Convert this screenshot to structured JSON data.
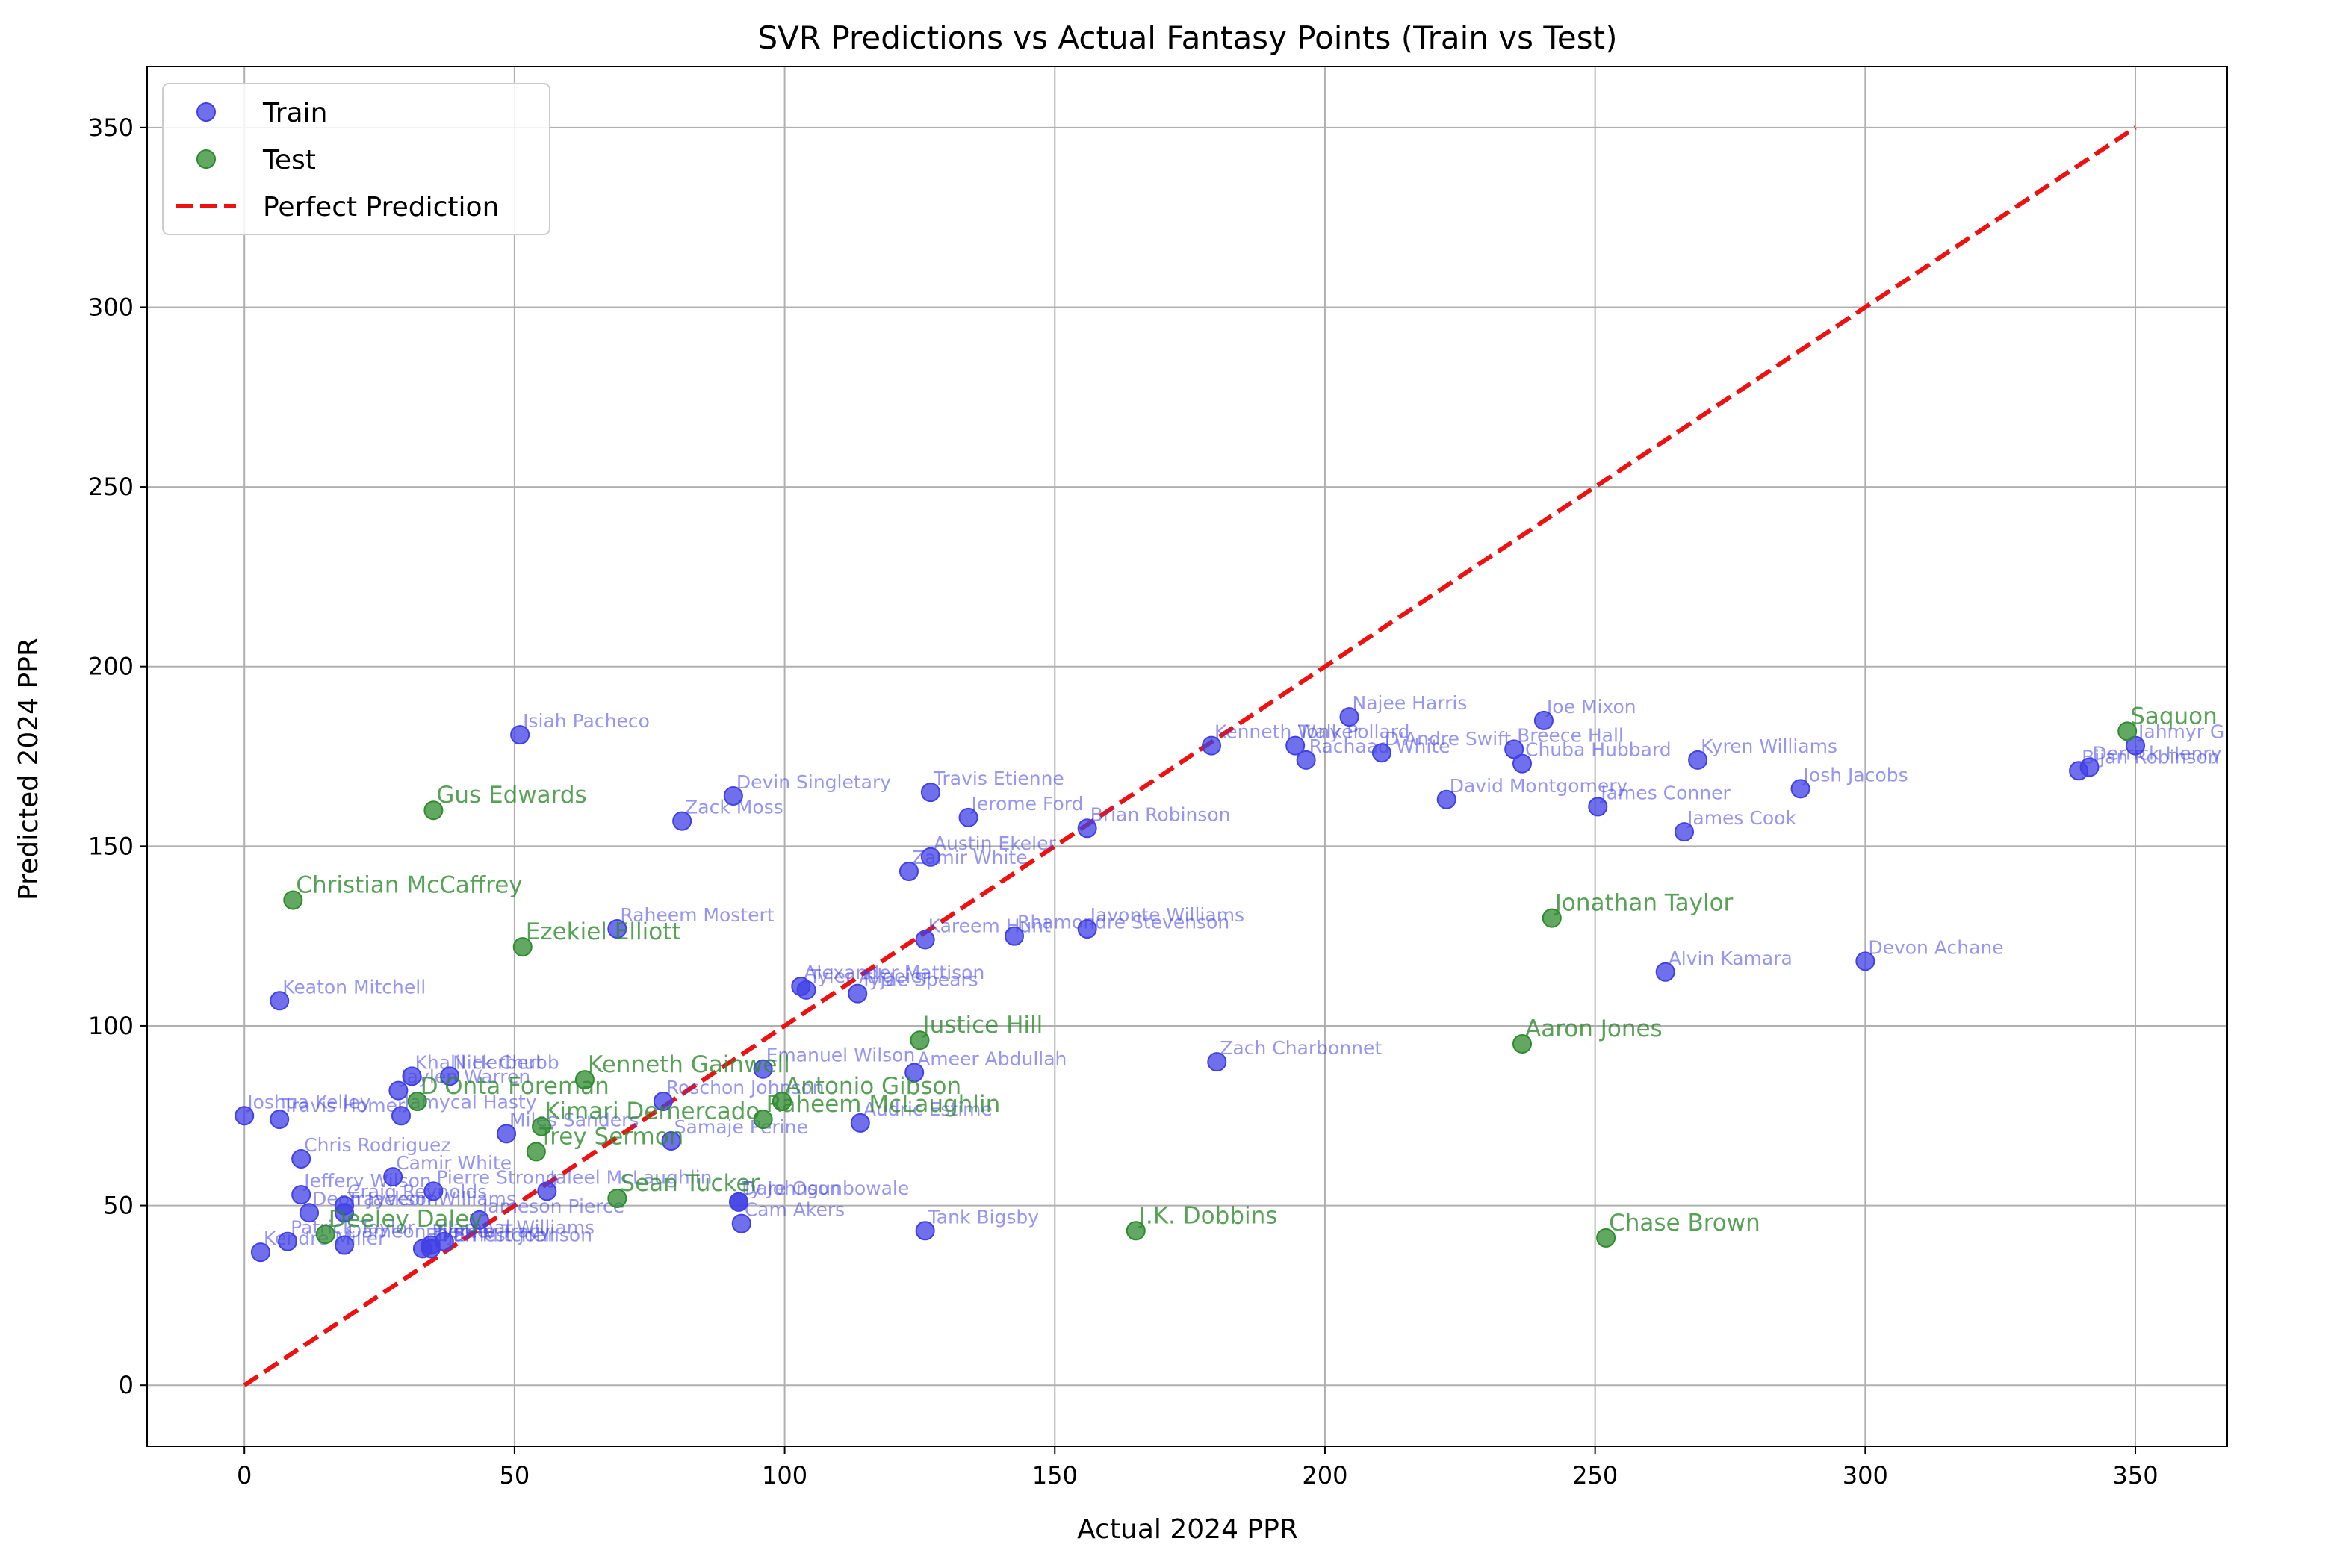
{
  "chart_data": {
    "type": "scatter",
    "title": "SVR Predictions vs Actual Fantasy Points (Train vs Test)",
    "xlabel": "Actual 2024 PPR",
    "ylabel": "Predicted 2024 PPR",
    "xlim": [
      -18,
      367
    ],
    "ylim": [
      -17,
      367
    ],
    "xticks": [
      0,
      50,
      100,
      150,
      200,
      250,
      300,
      350
    ],
    "yticks": [
      0,
      50,
      100,
      150,
      200,
      250,
      300,
      350
    ],
    "grid": true,
    "legend_position": "upper-left",
    "colors": {
      "train": "#4040e6",
      "test": "#2e8b2e",
      "perfect": "#ee1111"
    },
    "legend": [
      {
        "name": "Train",
        "marker": "point",
        "color": "#4040e6"
      },
      {
        "name": "Test",
        "marker": "point",
        "color": "#2e8b2e"
      },
      {
        "name": "Perfect Prediction",
        "marker": "dashed-line",
        "color": "#ee1111"
      }
    ],
    "perfect_line": {
      "x": [
        0,
        350
      ],
      "y": [
        0,
        350
      ]
    },
    "series": [
      {
        "name": "Train",
        "points": [
          {
            "label": "Isiah Pacheco",
            "x": 51,
            "y": 181
          },
          {
            "label": "Najee Harris",
            "x": 204.5,
            "y": 186
          },
          {
            "label": "Joe Mixon",
            "x": 240.5,
            "y": 185
          },
          {
            "label": "Jahmyr Gibbs",
            "x": 350,
            "y": 178
          },
          {
            "label": "Kenneth Walker",
            "x": 179,
            "y": 178
          },
          {
            "label": "Tony Pollard",
            "x": 194.5,
            "y": 178
          },
          {
            "label": "D'Andre Swift",
            "x": 210.5,
            "y": 176
          },
          {
            "label": "Rachaad White",
            "x": 196.5,
            "y": 174
          },
          {
            "label": "Breece Hall",
            "x": 235,
            "y": 177
          },
          {
            "label": "Chuba Hubbard",
            "x": 236.5,
            "y": 173
          },
          {
            "label": "Kyren Williams",
            "x": 269,
            "y": 174
          },
          {
            "label": "Derrick Henry",
            "x": 341.5,
            "y": 172
          },
          {
            "label": "Bijan Robinson",
            "x": 339.5,
            "y": 171
          },
          {
            "label": "Josh Jacobs",
            "x": 288,
            "y": 166
          },
          {
            "label": "Travis Etienne",
            "x": 127,
            "y": 165
          },
          {
            "label": "Devin Singletary",
            "x": 90.5,
            "y": 164
          },
          {
            "label": "David Montgomery",
            "x": 222.5,
            "y": 163
          },
          {
            "label": "James Conner",
            "x": 250.5,
            "y": 161
          },
          {
            "label": "Jerome Ford",
            "x": 134,
            "y": 158
          },
          {
            "label": "Zack Moss",
            "x": 81,
            "y": 157
          },
          {
            "label": "Brian Robinson",
            "x": 156,
            "y": 155
          },
          {
            "label": "James Cook",
            "x": 266.5,
            "y": 154
          },
          {
            "label": "Austin Ekeler",
            "x": 127,
            "y": 147
          },
          {
            "label": "Zamir White",
            "x": 123,
            "y": 143
          },
          {
            "label": "Raheem Mostert",
            "x": 69,
            "y": 127
          },
          {
            "label": "Javonte Williams",
            "x": 156,
            "y": 127
          },
          {
            "label": "Kareem Hunt",
            "x": 126,
            "y": 124
          },
          {
            "label": "Rhamondre Stevenson",
            "x": 142.5,
            "y": 125
          },
          {
            "label": "Devon Achane",
            "x": 300,
            "y": 118
          },
          {
            "label": "Alvin Kamara",
            "x": 263,
            "y": 115
          },
          {
            "label": "Alexander Mattison",
            "x": 103,
            "y": 111
          },
          {
            "label": "Tyjae Spears",
            "x": 113.5,
            "y": 109
          },
          {
            "label": "Tyler Allgeier",
            "x": 104,
            "y": 110
          },
          {
            "label": "Keaton Mitchell",
            "x": 6.5,
            "y": 107
          },
          {
            "label": "Zach Charbonnet",
            "x": 180,
            "y": 90
          },
          {
            "label": "Emanuel Wilson",
            "x": 96,
            "y": 88
          },
          {
            "label": "Ameer Abdullah",
            "x": 124,
            "y": 87
          },
          {
            "label": "Khalil Herbert",
            "x": 31,
            "y": 86
          },
          {
            "label": "Nick Chubb",
            "x": 38,
            "y": 86
          },
          {
            "label": "Jaylen Warren",
            "x": 28.5,
            "y": 82
          },
          {
            "label": "Roschon Johnson",
            "x": 77.5,
            "y": 79
          },
          {
            "label": "Joshua Kelley",
            "x": 0,
            "y": 75
          },
          {
            "label": "Travis Homer",
            "x": 6.5,
            "y": 74
          },
          {
            "label": "Jamycal Hasty",
            "x": 29,
            "y": 75
          },
          {
            "label": "Audric Estime",
            "x": 114,
            "y": 73
          },
          {
            "label": "Miles Sanders",
            "x": 48.5,
            "y": 70
          },
          {
            "label": "Samaje Perine",
            "x": 79,
            "y": 68
          },
          {
            "label": "Chris Rodriguez",
            "x": 10.5,
            "y": 63
          },
          {
            "label": "Jaleel McLaughlin",
            "x": 56,
            "y": 54
          },
          {
            "label": "Camir White",
            "x": 27.5,
            "y": 58
          },
          {
            "label": "Jeffery Wilson",
            "x": 10.5,
            "y": 53
          },
          {
            "label": "Pierre Strong",
            "x": 35,
            "y": 54
          },
          {
            "label": "Dare Ogunbowale",
            "x": 91.5,
            "y": 51
          },
          {
            "label": "Craig Reynolds",
            "x": 18.5,
            "y": 50
          },
          {
            "label": "Deon Jackson",
            "x": 12,
            "y": 48
          },
          {
            "label": "Trayveon Williams",
            "x": 18.5,
            "y": 48
          },
          {
            "label": "Ty Johnson",
            "x": 91.5,
            "y": 51
          },
          {
            "label": "Cam Akers",
            "x": 92,
            "y": 45
          },
          {
            "label": "Jameson Pierce",
            "x": 43.5,
            "y": 46
          },
          {
            "label": "Tank Bigsby",
            "x": 126,
            "y": 43
          },
          {
            "label": "Kendre Miller",
            "x": 3,
            "y": 37
          },
          {
            "label": "Patrick Taylor",
            "x": 8,
            "y": 40
          },
          {
            "label": "Dameon Pierce",
            "x": 18.5,
            "y": 39
          },
          {
            "label": "Jamaal Williams",
            "x": 37,
            "y": 40
          },
          {
            "label": "Tyrone Tracy",
            "x": 34.5,
            "y": 39
          },
          {
            "label": "D'Ernest Johnson",
            "x": 34.5,
            "y": 38
          },
          {
            "label": "Elijah Mitchell",
            "x": 33,
            "y": 38
          }
        ]
      },
      {
        "name": "Test",
        "points": [
          {
            "label": "Saquon Barkley",
            "x": 348.5,
            "y": 182
          },
          {
            "label": "Gus Edwards",
            "x": 35,
            "y": 160
          },
          {
            "label": "Christian McCaffrey",
            "x": 9,
            "y": 135
          },
          {
            "label": "Jonathan Taylor",
            "x": 242,
            "y": 130
          },
          {
            "label": "Ezekiel Elliott",
            "x": 51.5,
            "y": 122
          },
          {
            "label": "Justice Hill",
            "x": 125,
            "y": 96
          },
          {
            "label": "Aaron Jones",
            "x": 236.5,
            "y": 95
          },
          {
            "label": "Kenneth Gainwell",
            "x": 63,
            "y": 85
          },
          {
            "label": "D'Onta Foreman",
            "x": 32,
            "y": 79
          },
          {
            "label": "Antonio Gibson",
            "x": 99.5,
            "y": 79
          },
          {
            "label": "Raheem McLaughlin",
            "x": 96,
            "y": 74
          },
          {
            "label": "Kimari Demercado",
            "x": 55,
            "y": 72
          },
          {
            "label": "Trey Sermon",
            "x": 54,
            "y": 65
          },
          {
            "label": "Sean Tucker",
            "x": 69,
            "y": 52
          },
          {
            "label": "J.K. Dobbins",
            "x": 165,
            "y": 43
          },
          {
            "label": "Chase Brown",
            "x": 252,
            "y": 41
          },
          {
            "label": "Deeley Daley",
            "x": 15,
            "y": 42
          }
        ]
      }
    ]
  }
}
